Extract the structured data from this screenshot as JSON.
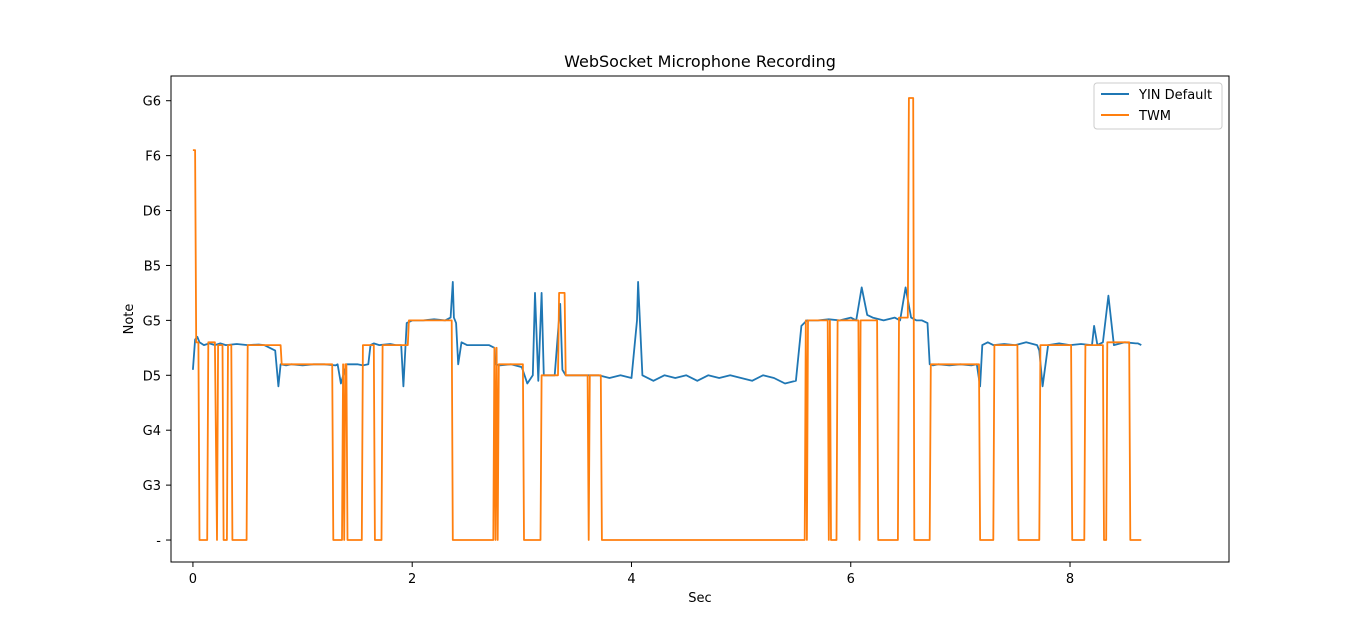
{
  "chart_data": {
    "type": "line",
    "title": "WebSocket Microphone Recording",
    "xlabel": "Sec",
    "ylabel": "Note",
    "xlim": [
      -0.2,
      9.45
    ],
    "ylim": [
      -0.4,
      8.45
    ],
    "xticks": [
      0,
      2,
      4,
      6,
      8
    ],
    "yticks": [
      {
        "value": 0,
        "label": "-"
      },
      {
        "value": 1,
        "label": "G3"
      },
      {
        "value": 2,
        "label": "G4"
      },
      {
        "value": 3,
        "label": "D5"
      },
      {
        "value": 4,
        "label": "G5"
      },
      {
        "value": 5,
        "label": "B5"
      },
      {
        "value": 6,
        "label": "D6"
      },
      {
        "value": 7,
        "label": "F6"
      },
      {
        "value": 8,
        "label": "G6"
      }
    ],
    "legend_position": "top-right",
    "series": [
      {
        "name": "YIN Default",
        "color": "#1f77b4",
        "x": [
          0.0,
          0.02,
          0.04,
          0.06,
          0.1,
          0.15,
          0.2,
          0.25,
          0.3,
          0.4,
          0.5,
          0.6,
          0.65,
          0.7,
          0.75,
          0.78,
          0.8,
          0.85,
          0.9,
          1.0,
          1.1,
          1.2,
          1.3,
          1.32,
          1.35,
          1.4,
          1.5,
          1.55,
          1.6,
          1.62,
          1.65,
          1.7,
          1.8,
          1.85,
          1.9,
          1.92,
          1.95,
          2.0,
          2.1,
          2.2,
          2.3,
          2.35,
          2.37,
          2.38,
          2.4,
          2.42,
          2.45,
          2.5,
          2.6,
          2.7,
          2.75,
          2.76,
          2.8,
          2.9,
          3.0,
          3.05,
          3.1,
          3.12,
          3.15,
          3.18,
          3.2,
          3.3,
          3.35,
          3.37,
          3.4,
          3.5,
          3.6,
          3.7,
          3.8,
          3.9,
          4.0,
          4.05,
          4.06,
          4.1,
          4.2,
          4.3,
          4.4,
          4.5,
          4.6,
          4.7,
          4.8,
          4.9,
          5.0,
          5.1,
          5.2,
          5.3,
          5.4,
          5.5,
          5.55,
          5.6,
          5.7,
          5.8,
          5.9,
          6.0,
          6.05,
          6.1,
          6.15,
          6.2,
          6.3,
          6.4,
          6.45,
          6.5,
          6.55,
          6.6,
          6.65,
          6.7,
          6.72,
          6.75,
          6.8,
          6.9,
          7.0,
          7.1,
          7.15,
          7.18,
          7.2,
          7.25,
          7.3,
          7.4,
          7.5,
          7.6,
          7.7,
          7.72,
          7.75,
          7.8,
          7.9,
          8.0,
          8.1,
          8.2,
          8.22,
          8.25,
          8.3,
          8.35,
          8.4,
          8.5,
          8.6,
          8.62,
          8.65
        ],
        "y": [
          3.1,
          3.65,
          3.7,
          3.6,
          3.55,
          3.58,
          3.55,
          3.58,
          3.55,
          3.57,
          3.55,
          3.56,
          3.55,
          3.5,
          3.45,
          2.8,
          3.2,
          3.18,
          3.2,
          3.18,
          3.2,
          3.2,
          3.18,
          3.2,
          2.85,
          3.2,
          3.2,
          3.18,
          3.2,
          3.55,
          3.58,
          3.55,
          3.57,
          3.55,
          3.55,
          2.8,
          3.95,
          4.0,
          4.0,
          4.02,
          4.0,
          4.05,
          4.7,
          4.05,
          3.95,
          3.2,
          3.6,
          3.55,
          3.55,
          3.55,
          3.5,
          3.2,
          3.18,
          3.2,
          3.15,
          2.85,
          3.0,
          4.5,
          2.9,
          4.5,
          3.0,
          3.0,
          4.3,
          3.1,
          3.0,
          3.0,
          3.0,
          3.0,
          2.95,
          3.0,
          2.95,
          4.0,
          4.7,
          3.0,
          2.9,
          3.0,
          2.95,
          3.0,
          2.9,
          3.0,
          2.95,
          3.0,
          2.95,
          2.9,
          3.0,
          2.95,
          2.85,
          2.9,
          3.9,
          4.0,
          4.0,
          4.02,
          4.0,
          4.05,
          4.0,
          4.6,
          4.1,
          4.05,
          4.0,
          4.05,
          4.0,
          4.6,
          4.05,
          4.0,
          4.0,
          3.95,
          3.2,
          3.18,
          3.2,
          3.18,
          3.2,
          3.18,
          3.2,
          2.8,
          3.55,
          3.6,
          3.55,
          3.57,
          3.55,
          3.6,
          3.55,
          3.45,
          2.8,
          3.55,
          3.58,
          3.55,
          3.57,
          3.55,
          3.9,
          3.55,
          3.6,
          4.45,
          3.55,
          3.6,
          3.58,
          3.58,
          3.55
        ]
      },
      {
        "name": "TWM",
        "color": "#ff7f0e",
        "x": [
          0.0,
          0.02,
          0.03,
          0.05,
          0.06,
          0.13,
          0.14,
          0.2,
          0.22,
          0.23,
          0.27,
          0.28,
          0.31,
          0.32,
          0.35,
          0.36,
          0.49,
          0.5,
          0.8,
          0.81,
          1.27,
          1.28,
          1.36,
          1.37,
          1.38,
          1.39,
          1.4,
          1.41,
          1.54,
          1.55,
          1.65,
          1.66,
          1.72,
          1.73,
          1.96,
          1.97,
          2.36,
          2.37,
          2.74,
          2.75,
          2.76,
          2.77,
          2.78,
          2.79,
          2.8,
          3.01,
          3.02,
          3.17,
          3.18,
          3.33,
          3.34,
          3.39,
          3.4,
          3.6,
          3.61,
          3.62,
          3.72,
          3.73,
          5.58,
          5.59,
          5.6,
          5.61,
          5.79,
          5.8,
          5.81,
          5.82,
          5.87,
          5.88,
          6.07,
          6.08,
          6.09,
          6.24,
          6.25,
          6.43,
          6.44,
          6.52,
          6.53,
          6.57,
          6.58,
          6.72,
          6.73,
          7.17,
          7.18,
          7.3,
          7.31,
          7.52,
          7.53,
          7.72,
          7.73,
          8.01,
          8.02,
          8.13,
          8.14,
          8.3,
          8.31,
          8.33,
          8.34,
          8.54,
          8.55,
          8.63,
          8.65
        ],
        "y": [
          7.1,
          7.1,
          3.6,
          3.6,
          0.0,
          0.0,
          3.6,
          3.6,
          0.0,
          3.55,
          3.55,
          0.0,
          0.0,
          3.55,
          3.55,
          0.0,
          0.0,
          3.55,
          3.55,
          3.2,
          3.2,
          0.0,
          0.0,
          3.2,
          0.0,
          3.2,
          3.2,
          0.0,
          0.0,
          3.55,
          3.55,
          0.0,
          0.0,
          3.55,
          3.55,
          4.0,
          4.0,
          0.0,
          0.0,
          3.5,
          0.0,
          3.5,
          0.0,
          3.2,
          3.2,
          3.2,
          0.0,
          0.0,
          3.0,
          3.0,
          4.5,
          4.5,
          3.0,
          3.0,
          0.0,
          3.0,
          3.0,
          0.0,
          0.0,
          4.0,
          0.0,
          4.0,
          4.0,
          0.0,
          4.0,
          0.0,
          0.0,
          4.0,
          4.0,
          0.0,
          4.0,
          4.0,
          0.0,
          0.0,
          4.05,
          4.05,
          8.05,
          8.05,
          0.0,
          0.0,
          3.2,
          3.2,
          0.0,
          0.0,
          3.55,
          3.55,
          0.0,
          0.0,
          3.55,
          3.55,
          0.0,
          0.0,
          3.55,
          3.55,
          0.0,
          0.0,
          3.6,
          3.6,
          0.0,
          0.0,
          0.0
        ]
      }
    ]
  }
}
